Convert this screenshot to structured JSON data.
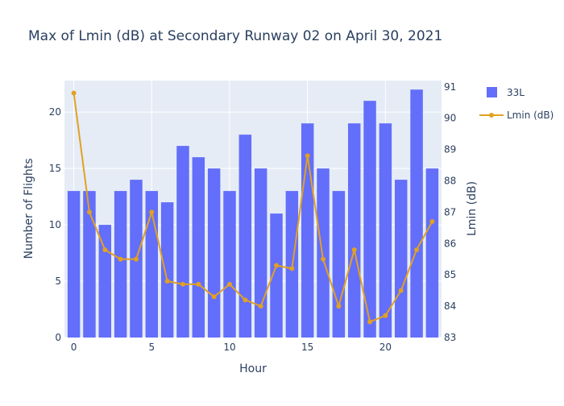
{
  "chart_data": {
    "type": "bar+line",
    "title": "Max of Lmin (dB) at Secondary Runway 02 on April 30, 2021",
    "xlabel": "Hour",
    "ylabel_left": "Number of Flights",
    "ylabel_right": "Lmin (dB)",
    "x": [
      0,
      1,
      2,
      3,
      4,
      5,
      6,
      7,
      8,
      9,
      10,
      11,
      12,
      13,
      14,
      15,
      16,
      17,
      18,
      19,
      20,
      21,
      22,
      23
    ],
    "x_ticks": [
      0,
      5,
      10,
      15,
      20
    ],
    "x_range": [
      -0.6,
      23.6
    ],
    "y_left_range": [
      0,
      22.8
    ],
    "y_left_ticks": [
      0,
      5,
      10,
      15,
      20
    ],
    "y_right_range": [
      83,
      91.2
    ],
    "y_right_ticks": [
      83,
      84,
      85,
      86,
      87,
      88,
      89,
      90,
      91
    ],
    "grid": true,
    "legend_position": "top-right",
    "series": [
      {
        "name": "33L",
        "kind": "bar",
        "axis": "left",
        "color": "#636efa",
        "values": [
          13,
          13,
          10,
          13,
          14,
          13,
          12,
          17,
          16,
          15,
          13,
          18,
          15,
          11,
          13,
          19,
          15,
          13,
          19,
          21,
          19,
          14,
          22,
          15
        ]
      },
      {
        "name": "Lmin (dB)",
        "kind": "line+markers",
        "axis": "right",
        "color": "#e1a122",
        "values": [
          90.8,
          87.0,
          85.8,
          85.5,
          85.5,
          87.0,
          84.8,
          84.7,
          84.7,
          84.3,
          84.7,
          84.2,
          84.0,
          85.3,
          85.2,
          88.8,
          85.5,
          84.0,
          85.8,
          83.5,
          83.7,
          84.5,
          85.8,
          86.7
        ]
      }
    ]
  }
}
